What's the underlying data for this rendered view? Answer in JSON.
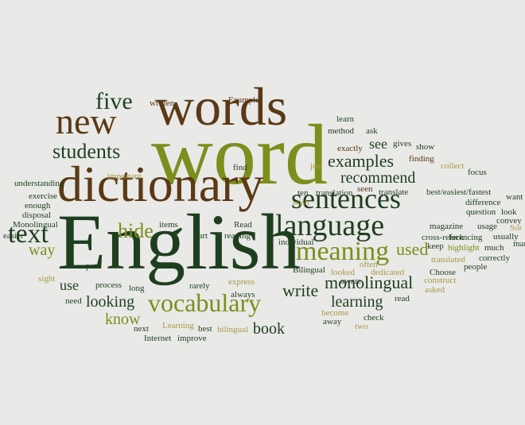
{
  "palette": {
    "dark_green": "#1e3f1e",
    "brown": "#5a3914",
    "olive": "#7c8e1c",
    "khaki": "#a89a45",
    "light_olive": "#aeb24a",
    "background": "#e9e9e7"
  },
  "cloud": {
    "words": [
      {
        "text": "English",
        "color": "dark_green"
      },
      {
        "text": "word",
        "color": "olive"
      },
      {
        "text": "words",
        "color": "brown"
      },
      {
        "text": "dictionary",
        "color": "brown"
      },
      {
        "text": "new",
        "color": "brown"
      },
      {
        "text": "five",
        "color": "dark_green"
      },
      {
        "text": "students",
        "color": "dark_green"
      },
      {
        "text": "sentences",
        "color": "dark_green"
      },
      {
        "text": "language",
        "color": "dark_green"
      },
      {
        "text": "vocabulary",
        "color": "olive"
      },
      {
        "text": "meaning",
        "color": "olive"
      },
      {
        "text": "text",
        "color": "dark_green"
      },
      {
        "text": "hide",
        "color": "olive"
      },
      {
        "text": "examples",
        "color": "dark_green"
      },
      {
        "text": "recommend",
        "color": "dark_green"
      },
      {
        "text": "monolingual",
        "color": "dark_green"
      },
      {
        "text": "learning",
        "color": "dark_green"
      },
      {
        "text": "looking",
        "color": "dark_green"
      },
      {
        "text": "write",
        "color": "dark_green"
      },
      {
        "text": "used",
        "color": "olive"
      },
      {
        "text": "way",
        "color": "olive"
      },
      {
        "text": "book",
        "color": "dark_green"
      },
      {
        "text": "know",
        "color": "olive"
      },
      {
        "text": "use",
        "color": "dark_green"
      },
      {
        "text": "see",
        "color": "dark_green"
      },
      {
        "text": "written",
        "color": "brown"
      },
      {
        "text": "Example",
        "color": "brown"
      },
      {
        "text": "learn",
        "color": "dark_green"
      },
      {
        "text": "method",
        "color": "dark_green"
      },
      {
        "text": "ask",
        "color": "dark_green"
      },
      {
        "text": "exactly",
        "color": "brown"
      },
      {
        "text": "gives",
        "color": "dark_green"
      },
      {
        "text": "show",
        "color": "dark_green"
      },
      {
        "text": "finding",
        "color": "brown"
      },
      {
        "text": "collect",
        "color": "khaki"
      },
      {
        "text": "focus",
        "color": "dark_green"
      },
      {
        "text": "just",
        "color": "khaki"
      },
      {
        "text": "find",
        "color": "dark_green"
      },
      {
        "text": "important",
        "color": "khaki"
      },
      {
        "text": "understanding",
        "color": "dark_green"
      },
      {
        "text": "exercise",
        "color": "dark_green"
      },
      {
        "text": "enough",
        "color": "dark_green"
      },
      {
        "text": "disposal",
        "color": "dark_green"
      },
      {
        "text": "ten",
        "color": "dark_green"
      },
      {
        "text": "translation",
        "color": "dark_green"
      },
      {
        "text": "seen",
        "color": "brown"
      },
      {
        "text": "translate",
        "color": "dark_green"
      },
      {
        "text": "best/easiest/fastest",
        "color": "dark_green"
      },
      {
        "text": "want",
        "color": "dark_green"
      },
      {
        "text": "wish",
        "color": "khaki"
      },
      {
        "text": "question",
        "color": "dark_green"
      },
      {
        "text": "look",
        "color": "dark_green"
      },
      {
        "text": "convey",
        "color": "dark_green"
      },
      {
        "text": "difference",
        "color": "dark_green"
      },
      {
        "text": "magazine",
        "color": "dark_green"
      },
      {
        "text": "Monolingual",
        "color": "dark_green"
      },
      {
        "text": "items",
        "color": "dark_green"
      },
      {
        "text": "Read",
        "color": "dark_green"
      },
      {
        "text": "part",
        "color": "dark_green"
      },
      {
        "text": "reading",
        "color": "dark_green"
      },
      {
        "text": "individual",
        "color": "dark_green"
      },
      {
        "text": "lock",
        "color": "dark_green"
      },
      {
        "text": "usage",
        "color": "dark_green"
      },
      {
        "text": "Sor",
        "color": "khaki"
      },
      {
        "text": "mar",
        "color": "dark_green"
      },
      {
        "text": "easier",
        "color": "dark_green"
      },
      {
        "text": "cross-referencing",
        "color": "dark_green"
      },
      {
        "text": "usually",
        "color": "dark_green"
      },
      {
        "text": "keep",
        "color": "dark_green"
      },
      {
        "text": "highlight",
        "color": "olive"
      },
      {
        "text": "much",
        "color": "dark_green"
      },
      {
        "text": "often",
        "color": "khaki"
      },
      {
        "text": "Bilingual",
        "color": "dark_green"
      },
      {
        "text": "translated",
        "color": "khaki"
      },
      {
        "text": "correctly",
        "color": "dark_green"
      },
      {
        "text": "Choose",
        "color": "dark_green"
      },
      {
        "text": "dedicated",
        "color": "khaki"
      },
      {
        "text": "looked",
        "color": "khaki"
      },
      {
        "text": "aware",
        "color": "dark_green"
      },
      {
        "text": "construct",
        "color": "khaki"
      },
      {
        "text": "people",
        "color": "dark_green"
      },
      {
        "text": "put",
        "color": "dark_green"
      },
      {
        "text": "sight",
        "color": "khaki"
      },
      {
        "text": "process",
        "color": "dark_green"
      },
      {
        "text": "long",
        "color": "dark_green"
      },
      {
        "text": "rarely",
        "color": "dark_green"
      },
      {
        "text": "express",
        "color": "khaki"
      },
      {
        "text": "asked",
        "color": "khaki"
      },
      {
        "text": "need",
        "color": "dark_green"
      },
      {
        "text": "always",
        "color": "dark_green"
      },
      {
        "text": "read",
        "color": "dark_green"
      },
      {
        "text": "become",
        "color": "khaki"
      },
      {
        "text": "away",
        "color": "dark_green"
      },
      {
        "text": "check",
        "color": "dark_green"
      },
      {
        "text": "next",
        "color": "dark_green"
      },
      {
        "text": "Learning",
        "color": "khaki"
      },
      {
        "text": "best",
        "color": "dark_green"
      },
      {
        "text": "Internet",
        "color": "dark_green"
      },
      {
        "text": "improve",
        "color": "dark_green"
      },
      {
        "text": "bilingual",
        "color": "khaki"
      },
      {
        "text": "two",
        "color": "khaki"
      }
    ]
  }
}
